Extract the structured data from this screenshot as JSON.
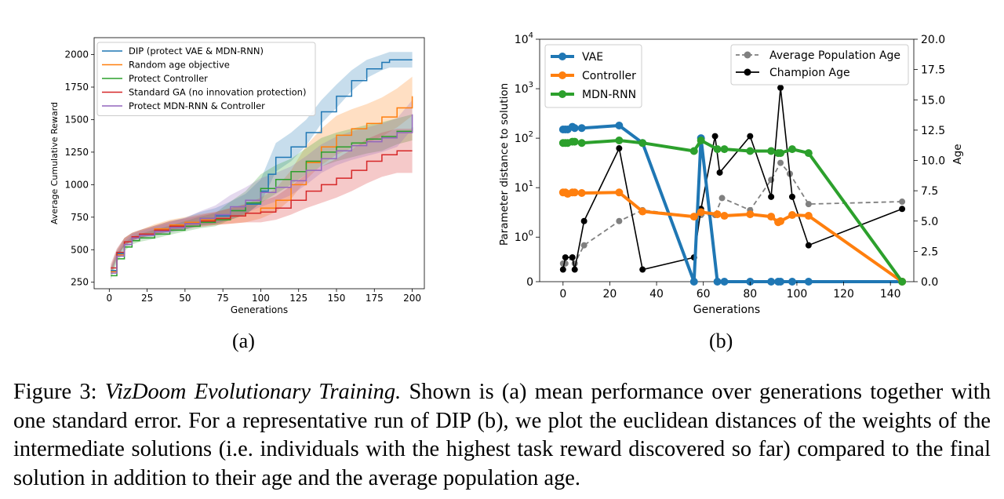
{
  "caption": {
    "prefix": "Figure 3: ",
    "italic": "VizDoom Evolutionary Training.",
    "rest": " Shown is (a) mean performance over generations together with one standard error. For a representative run of DIP (b), we plot the euclidean distances of the weights of the intermediate solutions (i.e. individuals with the highest task reward discovered so far) compared to the final solution in addition to their age and the average population age."
  },
  "subfig_labels": [
    "(a)",
    "(b)"
  ],
  "colors": {
    "blue": "#1f77b4",
    "orange": "#ff7f0e",
    "green": "#2ca02c",
    "red": "#d62728",
    "purple": "#9467bd",
    "gray": "#808080",
    "black": "#000000"
  },
  "chart_data": [
    {
      "type": "line",
      "xlabel": "Generations",
      "ylabel": "Average Cumulative Reward",
      "xlim": [
        -10,
        208
      ],
      "ylim": [
        200,
        2130
      ],
      "xticks": [
        0,
        25,
        50,
        75,
        100,
        125,
        150,
        175,
        200
      ],
      "yticks": [
        250,
        500,
        750,
        1000,
        1250,
        1500,
        1750,
        2000
      ],
      "legend_position": "top-left",
      "grid": false,
      "series": [
        {
          "name": "DIP (protect VAE & MDN-RNN)",
          "color": "#1f77b4",
          "x": [
            1,
            5,
            10,
            15,
            20,
            30,
            40,
            50,
            60,
            70,
            80,
            90,
            100,
            105,
            110,
            120,
            130,
            140,
            150,
            160,
            170,
            180,
            185,
            200
          ],
          "y": [
            340,
            470,
            560,
            600,
            620,
            650,
            680,
            700,
            740,
            760,
            800,
            850,
            950,
            1080,
            1210,
            1290,
            1400,
            1560,
            1680,
            1800,
            1890,
            1940,
            1960,
            1960
          ],
          "err": [
            30,
            30,
            30,
            30,
            30,
            35,
            40,
            45,
            50,
            60,
            70,
            80,
            90,
            100,
            110,
            110,
            100,
            90,
            90,
            80,
            70,
            60,
            60,
            60
          ]
        },
        {
          "name": "Random age objective",
          "color": "#ff7f0e",
          "x": [
            1,
            5,
            10,
            15,
            20,
            30,
            40,
            50,
            60,
            70,
            80,
            90,
            100,
            110,
            120,
            130,
            140,
            150,
            160,
            170,
            180,
            190,
            200
          ],
          "y": [
            330,
            460,
            560,
            600,
            620,
            660,
            690,
            710,
            730,
            740,
            760,
            780,
            820,
            880,
            1000,
            1170,
            1290,
            1380,
            1430,
            1470,
            1520,
            1590,
            1680
          ],
          "err": [
            30,
            30,
            30,
            30,
            30,
            35,
            40,
            40,
            45,
            50,
            60,
            70,
            80,
            90,
            110,
            130,
            140,
            150,
            150,
            150,
            150,
            150,
            150
          ]
        },
        {
          "name": "Protect Controller",
          "color": "#2ca02c",
          "x": [
            1,
            5,
            10,
            15,
            20,
            30,
            40,
            50,
            60,
            70,
            80,
            90,
            100,
            110,
            120,
            130,
            140,
            150,
            160,
            170,
            180,
            190,
            200
          ],
          "y": [
            300,
            430,
            520,
            570,
            590,
            620,
            650,
            680,
            710,
            730,
            800,
            860,
            970,
            1040,
            1100,
            1180,
            1250,
            1290,
            1320,
            1350,
            1370,
            1410,
            1440
          ],
          "err": [
            30,
            30,
            30,
            30,
            30,
            35,
            35,
            40,
            45,
            50,
            70,
            90,
            110,
            110,
            100,
            100,
            110,
            110,
            110,
            110,
            110,
            100,
            100
          ]
        },
        {
          "name": "Standard GA (no innovation protection)",
          "color": "#d62728",
          "x": [
            1,
            5,
            10,
            15,
            20,
            30,
            40,
            50,
            60,
            70,
            80,
            90,
            100,
            110,
            120,
            130,
            140,
            150,
            160,
            170,
            180,
            190,
            200
          ],
          "y": [
            360,
            480,
            560,
            600,
            620,
            650,
            680,
            700,
            720,
            740,
            760,
            780,
            790,
            820,
            880,
            950,
            1000,
            1050,
            1110,
            1180,
            1230,
            1260,
            1260
          ],
          "err": [
            30,
            30,
            30,
            30,
            30,
            35,
            40,
            40,
            45,
            50,
            60,
            70,
            80,
            90,
            110,
            130,
            140,
            150,
            160,
            170,
            170,
            170,
            170
          ]
        },
        {
          "name": "Protect MDN-RNN & Controller",
          "color": "#9467bd",
          "x": [
            1,
            5,
            10,
            15,
            20,
            30,
            40,
            50,
            60,
            70,
            80,
            90,
            100,
            110,
            120,
            130,
            140,
            150,
            160,
            170,
            180,
            190,
            200
          ],
          "y": [
            320,
            450,
            540,
            590,
            610,
            640,
            670,
            700,
            740,
            770,
            830,
            880,
            940,
            980,
            1030,
            1110,
            1200,
            1260,
            1300,
            1330,
            1360,
            1400,
            1540
          ],
          "err": [
            30,
            30,
            30,
            30,
            30,
            35,
            40,
            45,
            55,
            70,
            90,
            100,
            110,
            110,
            110,
            110,
            110,
            110,
            110,
            110,
            110,
            110,
            110
          ]
        }
      ]
    },
    {
      "type": "line",
      "xlabel": "Generations",
      "ylabel": "Parameter distance to solution",
      "y2label": "Age",
      "yscale": "symlog",
      "xlim": [
        -10,
        150
      ],
      "xticks": [
        0,
        20,
        40,
        60,
        80,
        100,
        120,
        140
      ],
      "yticks": [
        "0",
        "10^0",
        "10^1",
        "10^2",
        "10^3",
        "10^4"
      ],
      "y2lim": [
        0,
        20
      ],
      "y2ticks": [
        "0.0",
        "2.5",
        "5.0",
        "7.5",
        "10.0",
        "12.5",
        "15.0",
        "17.5",
        "20.0"
      ],
      "grid": false,
      "legend_left_position": "top-left",
      "legend_right_position": "top-right",
      "series_left": [
        {
          "name": "VAE",
          "color": "#1f77b4",
          "x": [
            0,
            1,
            2,
            4,
            5,
            8,
            24,
            34,
            56,
            59,
            66,
            69,
            80,
            89,
            92,
            93,
            98,
            105,
            145
          ],
          "y": [
            150,
            150,
            150,
            170,
            160,
            160,
            180,
            80,
            0,
            100,
            0,
            0,
            0,
            0,
            0,
            0,
            0,
            0,
            0
          ]
        },
        {
          "name": "Controller",
          "color": "#ff7f0e",
          "x": [
            0,
            1,
            2,
            4,
            5,
            8,
            24,
            34,
            56,
            59,
            66,
            69,
            80,
            89,
            92,
            93,
            98,
            105,
            145
          ],
          "y": [
            8,
            8,
            7.5,
            8,
            8,
            7.8,
            8,
            3.3,
            2.6,
            3.2,
            2.9,
            2.7,
            2.9,
            2.6,
            2.0,
            2.1,
            2.8,
            2.7,
            0
          ]
        },
        {
          "name": "MDN-RNN",
          "color": "#2ca02c",
          "x": [
            0,
            1,
            2,
            4,
            5,
            8,
            24,
            34,
            56,
            59,
            66,
            69,
            80,
            89,
            92,
            93,
            98,
            105,
            145
          ],
          "y": [
            80,
            80,
            80,
            85,
            85,
            80,
            90,
            80,
            55,
            90,
            60,
            60,
            55,
            55,
            50,
            50,
            60,
            50,
            0
          ]
        }
      ],
      "series_right": [
        {
          "name": "Average Population Age",
          "color": "#808080",
          "style": "dashed",
          "x": [
            0,
            1,
            4,
            5,
            9,
            24,
            34,
            56,
            59,
            65,
            68,
            80,
            89,
            93,
            97,
            105,
            145
          ],
          "y": [
            1.5,
            1.5,
            2.0,
            1.5,
            3.0,
            5.0,
            5.9,
            5.4,
            5.5,
            5.5,
            6.9,
            5.9,
            8.4,
            9.8,
            8.9,
            6.4,
            6.6
          ]
        },
        {
          "name": "Champion Age",
          "color": "#000000",
          "style": "solid",
          "x": [
            0,
            1,
            4,
            5,
            9,
            24,
            34,
            56,
            59,
            65,
            67,
            80,
            89,
            93,
            98,
            105,
            145
          ],
          "y": [
            1,
            2,
            2,
            1,
            5,
            11,
            1,
            2,
            6,
            12,
            9,
            12,
            7,
            16,
            7,
            3,
            6
          ]
        }
      ]
    }
  ]
}
